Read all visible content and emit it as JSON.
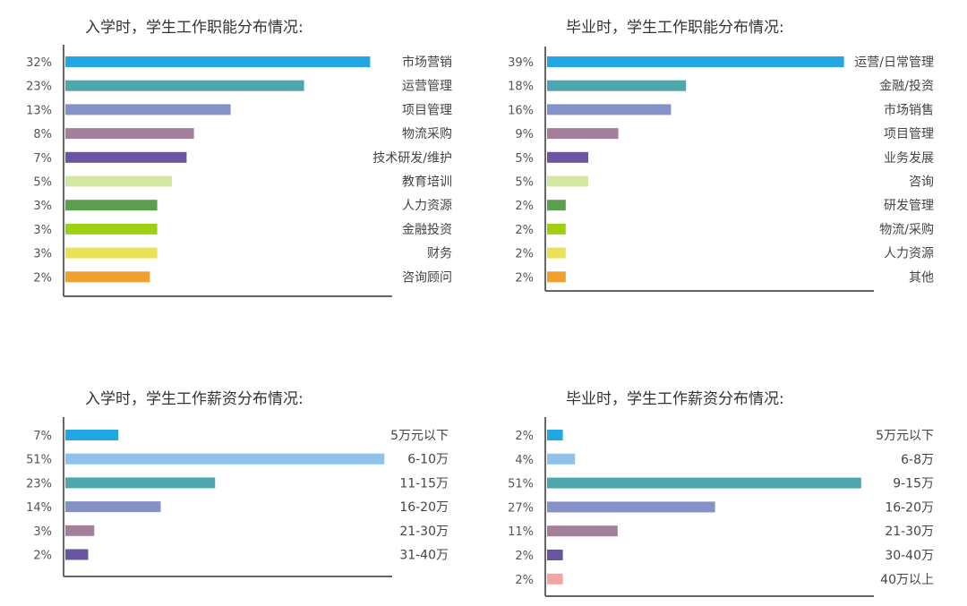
{
  "colors": {
    "blue": "#22a7e3",
    "light_blue": "#8fc1ea",
    "teal": "#4fa7ae",
    "periwinkle": "#8592c8",
    "mauve": "#a47f99",
    "purple": "#6a55a0",
    "pale_green": "#d5e8a0",
    "green": "#5a9e4e",
    "lime": "#9fcf10",
    "yellow": "#ece257",
    "orange": "#f0a02e",
    "pink": "#f4a4a2",
    "axis": "#666666"
  },
  "chart_data": [
    {
      "type": "bar",
      "orientation": "horizontal",
      "title": "入学时，学生工作职能分布情况:",
      "categories": [
        "市场营销",
        "运营管理",
        "项目管理",
        "物流采购",
        "技术研发/维护",
        "教育培训",
        "人力资源",
        "金融投资",
        "财务",
        "咨询顾问"
      ],
      "values": [
        32,
        23,
        13,
        8,
        7,
        5,
        3,
        3,
        3,
        2
      ],
      "value_labels": [
        "32%",
        "23%",
        "13%",
        "8%",
        "7%",
        "5%",
        "3%",
        "3%",
        "3%",
        "2%"
      ],
      "bar_colors": [
        "#22a7e3",
        "#4fa7ae",
        "#8592c8",
        "#a47f99",
        "#6a55a0",
        "#d5e8a0",
        "#5a9e4e",
        "#9fcf10",
        "#ece257",
        "#f0a02e"
      ],
      "unit": "%",
      "grid": false,
      "legend": "none"
    },
    {
      "type": "bar",
      "orientation": "horizontal",
      "title": "毕业时，学生工作职能分布情况:",
      "categories": [
        "运营/日常管理",
        "金融/投资",
        "市场销售",
        "项目管理",
        "业务发展",
        "咨询",
        "研发管理",
        "物流/采购",
        "人力资源",
        "其他"
      ],
      "values": [
        39,
        18,
        16,
        9,
        5,
        5,
        2,
        2,
        2,
        2
      ],
      "value_labels": [
        "39%",
        "18%",
        "16%",
        "9%",
        "5%",
        "5%",
        "2%",
        "2%",
        "2%",
        "2%"
      ],
      "bar_colors": [
        "#22a7e3",
        "#4fa7ae",
        "#8592c8",
        "#a47f99",
        "#6a55a0",
        "#d5e8a0",
        "#5a9e4e",
        "#9fcf10",
        "#ece257",
        "#f0a02e"
      ],
      "unit": "%",
      "grid": false,
      "legend": "none"
    },
    {
      "type": "bar",
      "orientation": "horizontal",
      "title": "入学时，学生工作薪资分布情况:",
      "categories": [
        "5万元以下",
        "6-10万",
        "11-15万",
        "16-20万",
        "21-30万",
        "31-40万"
      ],
      "values": [
        7,
        51,
        23,
        14,
        3,
        2
      ],
      "value_labels": [
        "7%",
        "51%",
        "23%",
        "14%",
        "3%",
        "2%"
      ],
      "bar_colors": [
        "#22a7e3",
        "#8fc1ea",
        "#4fa7ae",
        "#8592c8",
        "#a47f99",
        "#6a55a0"
      ],
      "unit": "%",
      "grid": false,
      "legend": "none"
    },
    {
      "type": "bar",
      "orientation": "horizontal",
      "title": "毕业时，学生工作薪资分布情况:",
      "categories": [
        "5万元以下",
        "6-8万",
        "9-15万",
        "16-20万",
        "21-30万",
        "30-40万",
        "40万以上"
      ],
      "values": [
        2,
        4,
        51,
        27,
        11,
        2,
        2
      ],
      "value_labels": [
        "2%",
        "4%",
        "51%",
        "27%",
        "11%",
        "2%",
        "2%"
      ],
      "bar_colors": [
        "#22a7e3",
        "#8fc1ea",
        "#4fa7ae",
        "#8592c8",
        "#a47f99",
        "#6a55a0",
        "#f4a4a2"
      ],
      "unit": "%",
      "grid": false,
      "legend": "none"
    }
  ]
}
